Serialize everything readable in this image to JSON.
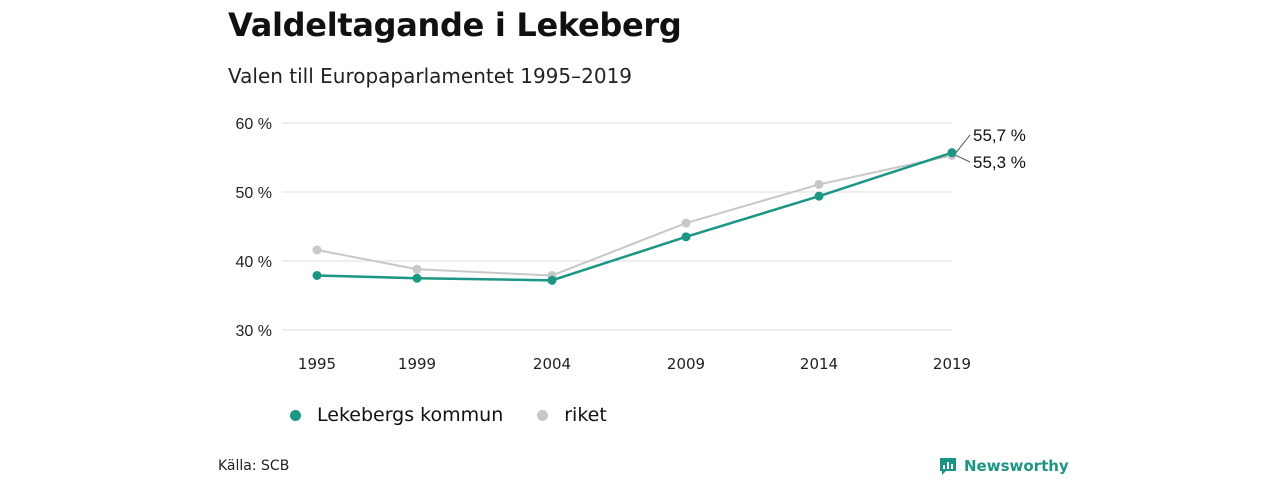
{
  "title": "Valdeltagande i Lekeberg",
  "subtitle": "Valen till Europaparlamentet 1995–2019",
  "source": "Källa: SCB",
  "brand": "Newsworthy",
  "colors": {
    "lekeberg": "#1b9683",
    "riket": "#c8c8c8",
    "grid": "#dddddd"
  },
  "chart_data": {
    "type": "line",
    "categories": [
      "1995",
      "1999",
      "2004",
      "2009",
      "2014",
      "2019"
    ],
    "ylim": [
      30,
      60
    ],
    "yticks": [
      "30 %",
      "40 %",
      "50 %",
      "60 %"
    ],
    "grid": true,
    "legend_position": "bottom",
    "series": [
      {
        "name": "Lekebergs kommun",
        "values": [
          37.9,
          37.5,
          37.2,
          43.5,
          49.4,
          55.7
        ],
        "end_label": "55,7 %"
      },
      {
        "name": "riket",
        "values": [
          41.6,
          38.8,
          37.9,
          45.5,
          51.1,
          55.3
        ],
        "end_label": "55,3 %"
      }
    ]
  }
}
